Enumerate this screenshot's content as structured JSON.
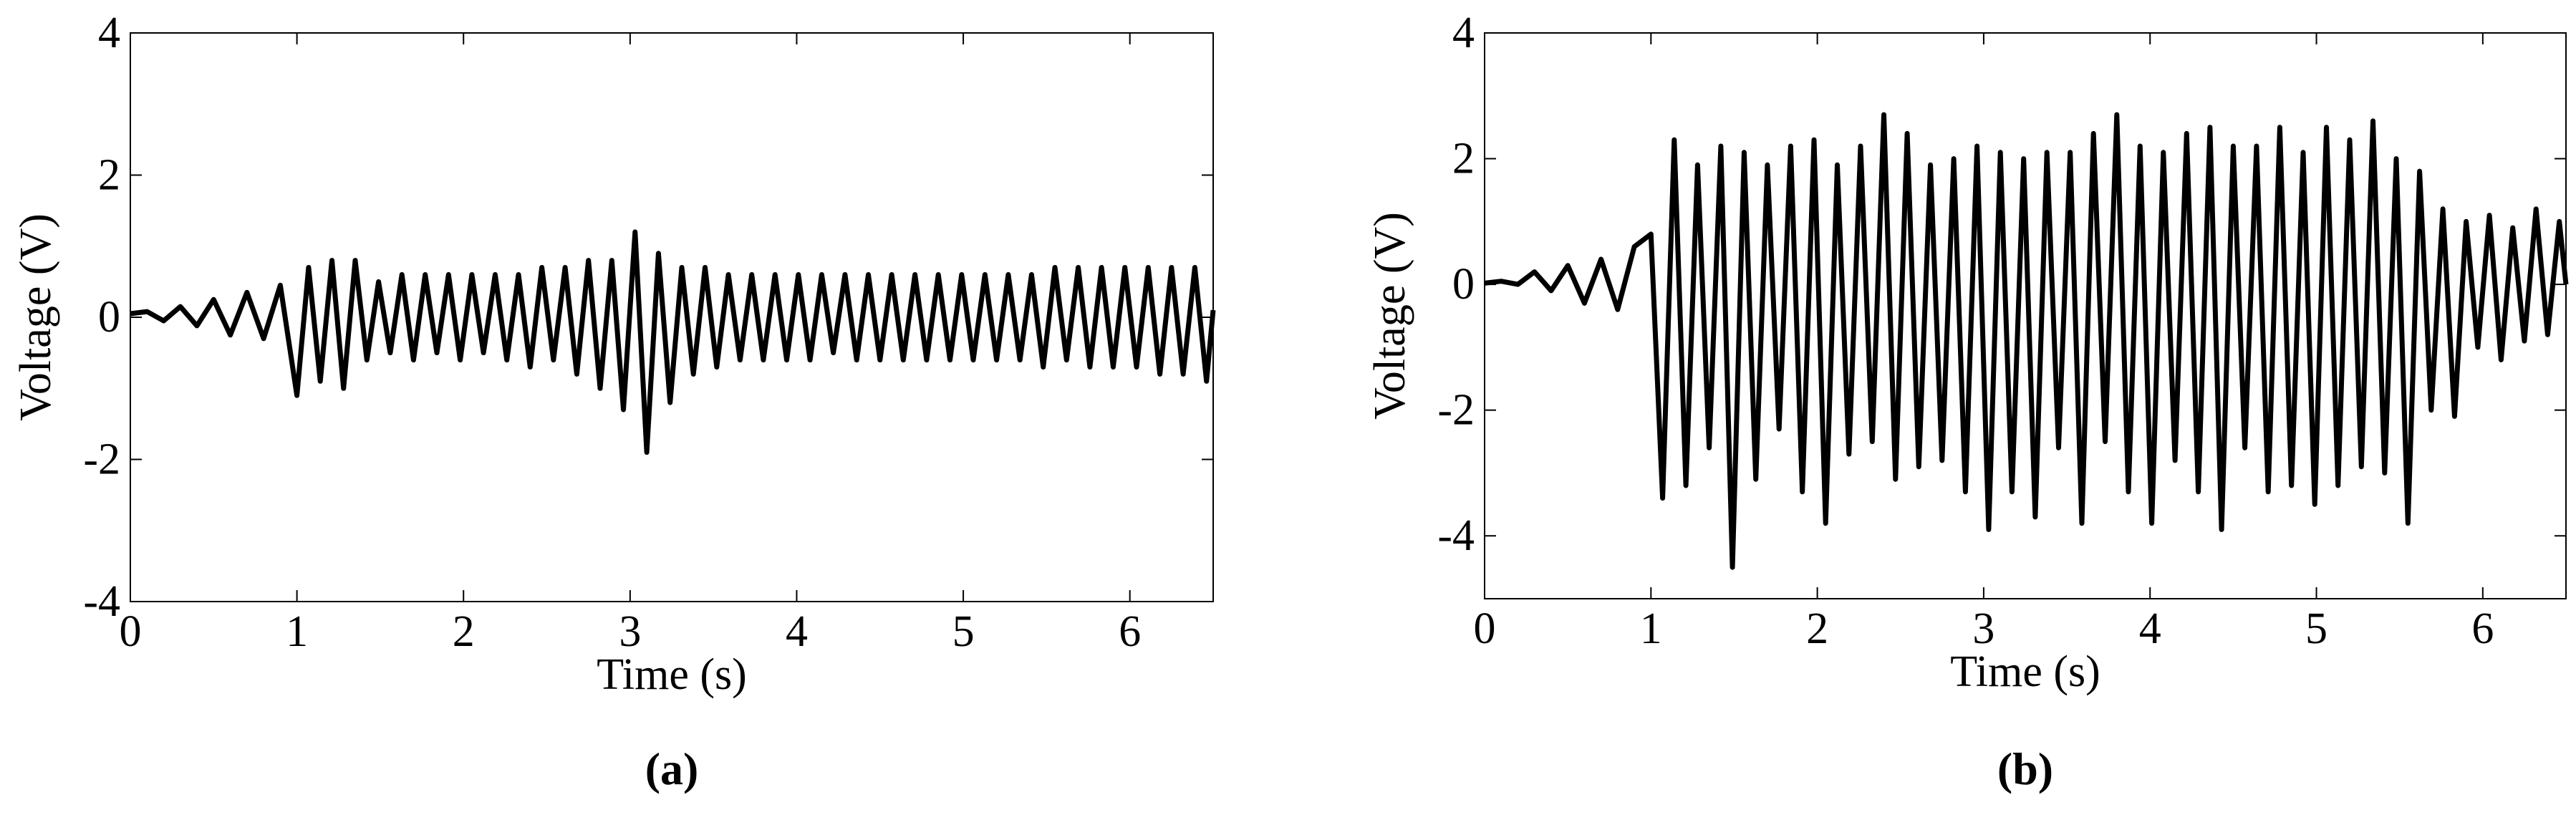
{
  "chart_data": [
    {
      "type": "line",
      "caption": "(a)",
      "xlabel": "Time (s)",
      "ylabel": "Voltage (V)",
      "color": "#000000",
      "xlim": [
        0,
        6.5
      ],
      "ylim": [
        -4,
        4
      ],
      "xticks": [
        0,
        1,
        2,
        3,
        4,
        5,
        6
      ],
      "yticks": [
        -4,
        -2,
        0,
        2,
        4
      ],
      "x": [
        0,
        0.1,
        0.2,
        0.3,
        0.4,
        0.5,
        0.6,
        0.7,
        0.8,
        0.9,
        1.0,
        1.07,
        1.14,
        1.21,
        1.28,
        1.35,
        1.42,
        1.49,
        1.56,
        1.63,
        1.7,
        1.77,
        1.84,
        1.91,
        1.98,
        2.05,
        2.12,
        2.19,
        2.26,
        2.33,
        2.4,
        2.47,
        2.54,
        2.61,
        2.68,
        2.75,
        2.82,
        2.89,
        2.96,
        3.03,
        3.1,
        3.17,
        3.24,
        3.31,
        3.38,
        3.45,
        3.52,
        3.59,
        3.66,
        3.73,
        3.8,
        3.87,
        3.94,
        4.01,
        4.08,
        4.15,
        4.22,
        4.29,
        4.36,
        4.43,
        4.5,
        4.57,
        4.64,
        4.71,
        4.78,
        4.85,
        4.92,
        4.99,
        5.06,
        5.13,
        5.2,
        5.27,
        5.34,
        5.41,
        5.48,
        5.55,
        5.62,
        5.69,
        5.76,
        5.83,
        5.9,
        5.97,
        6.04,
        6.11,
        6.18,
        6.25,
        6.32,
        6.39,
        6.46,
        6.5
      ],
      "values": [
        0.05,
        0.08,
        -0.05,
        0.15,
        -0.12,
        0.25,
        -0.25,
        0.35,
        -0.3,
        0.45,
        -1.1,
        0.7,
        -0.9,
        0.8,
        -1.0,
        0.8,
        -0.6,
        0.5,
        -0.5,
        0.6,
        -0.6,
        0.6,
        -0.5,
        0.6,
        -0.6,
        0.6,
        -0.5,
        0.6,
        -0.6,
        0.6,
        -0.7,
        0.7,
        -0.6,
        0.7,
        -0.8,
        0.8,
        -1.0,
        0.8,
        -1.3,
        1.2,
        -1.9,
        0.9,
        -1.2,
        0.7,
        -0.8,
        0.7,
        -0.7,
        0.6,
        -0.6,
        0.6,
        -0.6,
        0.6,
        -0.6,
        0.6,
        -0.6,
        0.6,
        -0.5,
        0.6,
        -0.6,
        0.6,
        -0.6,
        0.6,
        -0.6,
        0.6,
        -0.6,
        0.6,
        -0.6,
        0.6,
        -0.6,
        0.6,
        -0.6,
        0.6,
        -0.6,
        0.6,
        -0.7,
        0.7,
        -0.6,
        0.7,
        -0.7,
        0.7,
        -0.7,
        0.7,
        -0.7,
        0.7,
        -0.8,
        0.7,
        -0.8,
        0.7,
        -0.9,
        0.1
      ]
    },
    {
      "type": "line",
      "caption": "(b)",
      "xlabel": "Time (s)",
      "ylabel": "Voltage (V)",
      "color": "#000000",
      "xlim": [
        0,
        6.5
      ],
      "ylim": [
        -5,
        4
      ],
      "xticks": [
        0,
        1,
        2,
        3,
        4,
        5,
        6
      ],
      "yticks": [
        -4,
        -2,
        0,
        2,
        4
      ],
      "x": [
        0,
        0.1,
        0.2,
        0.3,
        0.4,
        0.5,
        0.6,
        0.7,
        0.8,
        0.9,
        1.0,
        1.07,
        1.14,
        1.21,
        1.28,
        1.35,
        1.42,
        1.49,
        1.56,
        1.63,
        1.7,
        1.77,
        1.84,
        1.91,
        1.98,
        2.05,
        2.12,
        2.19,
        2.26,
        2.33,
        2.4,
        2.47,
        2.54,
        2.61,
        2.68,
        2.75,
        2.82,
        2.89,
        2.96,
        3.03,
        3.1,
        3.17,
        3.24,
        3.31,
        3.38,
        3.45,
        3.52,
        3.59,
        3.66,
        3.73,
        3.8,
        3.87,
        3.94,
        4.01,
        4.08,
        4.15,
        4.22,
        4.29,
        4.36,
        4.43,
        4.5,
        4.57,
        4.64,
        4.71,
        4.78,
        4.85,
        4.92,
        4.99,
        5.06,
        5.13,
        5.2,
        5.27,
        5.34,
        5.41,
        5.48,
        5.55,
        5.62,
        5.69,
        5.76,
        5.83,
        5.9,
        5.97,
        6.04,
        6.11,
        6.18,
        6.25,
        6.32,
        6.39,
        6.46,
        6.5
      ],
      "values": [
        0.02,
        0.05,
        0.0,
        0.2,
        -0.1,
        0.3,
        -0.3,
        0.4,
        -0.4,
        0.6,
        0.8,
        -3.4,
        2.3,
        -3.2,
        1.9,
        -2.6,
        2.2,
        -4.5,
        2.1,
        -3.1,
        1.9,
        -2.3,
        2.2,
        -3.3,
        2.3,
        -3.8,
        1.9,
        -2.7,
        2.2,
        -2.5,
        2.7,
        -3.1,
        2.4,
        -2.9,
        1.9,
        -2.8,
        2.0,
        -3.3,
        2.2,
        -3.9,
        2.1,
        -3.3,
        2.0,
        -3.7,
        2.1,
        -2.6,
        2.1,
        -3.8,
        2.4,
        -2.5,
        2.7,
        -3.3,
        2.2,
        -3.8,
        2.1,
        -2.8,
        2.4,
        -3.3,
        2.5,
        -3.9,
        2.2,
        -2.6,
        2.2,
        -3.3,
        2.5,
        -3.2,
        2.1,
        -3.5,
        2.5,
        -3.2,
        2.3,
        -2.9,
        2.6,
        -3.0,
        2.0,
        -3.8,
        1.8,
        -2.0,
        1.2,
        -2.1,
        1.0,
        -1.0,
        1.1,
        -1.2,
        0.9,
        -0.9,
        1.2,
        -0.8,
        1.0,
        0.0
      ]
    }
  ]
}
